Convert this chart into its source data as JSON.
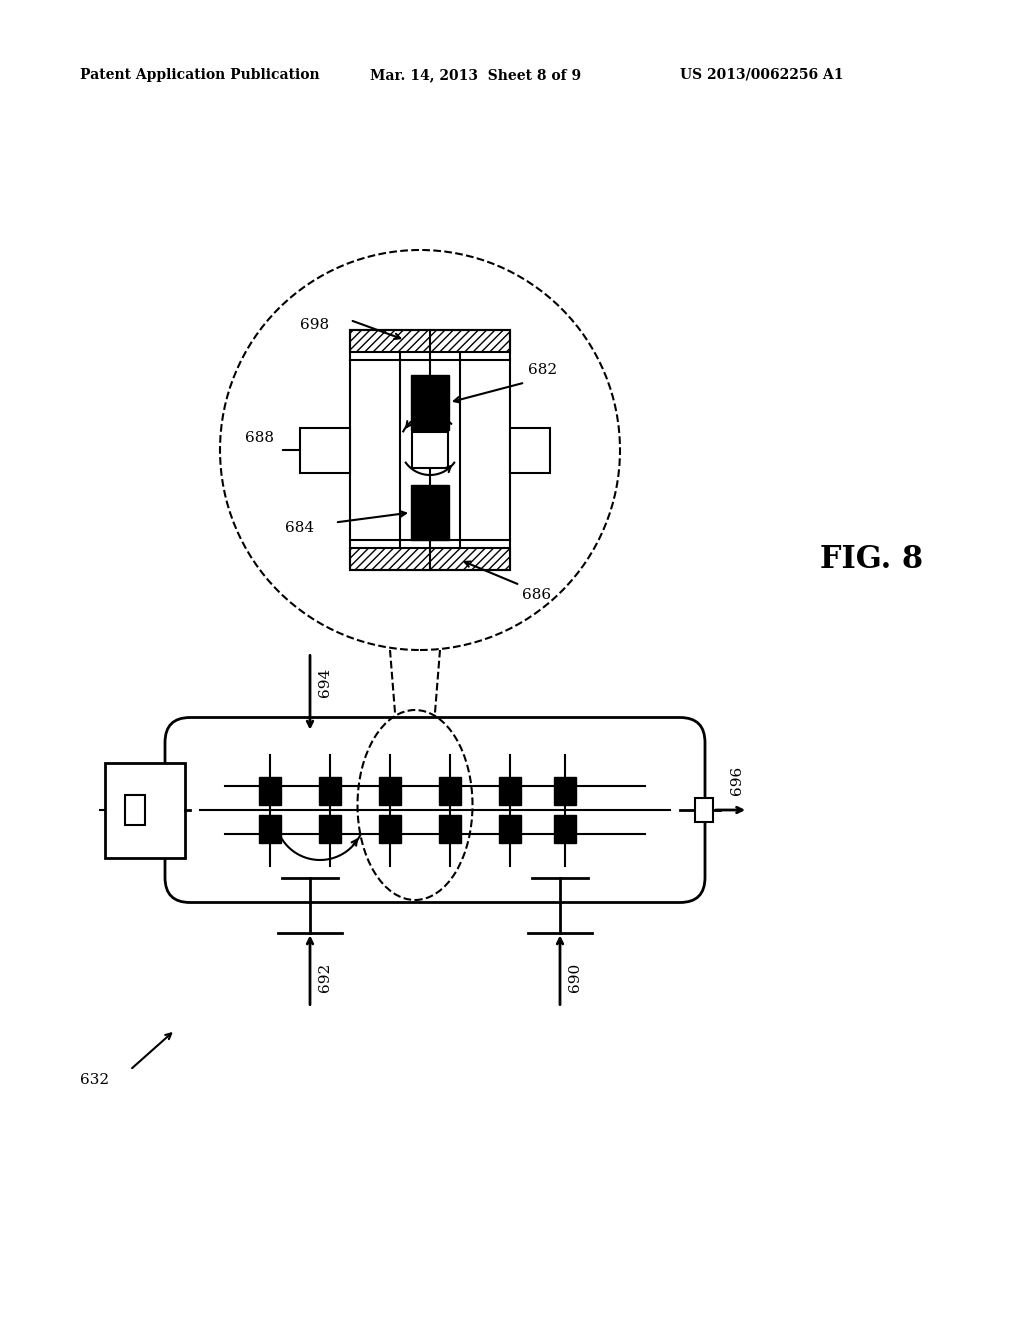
{
  "bg_color": "#ffffff",
  "line_color": "#000000",
  "header_left": "Patent Application Publication",
  "header_mid": "Mar. 14, 2013  Sheet 8 of 9",
  "header_right": "US 2013/0062256 A1",
  "fig_label": "FIG. 8"
}
